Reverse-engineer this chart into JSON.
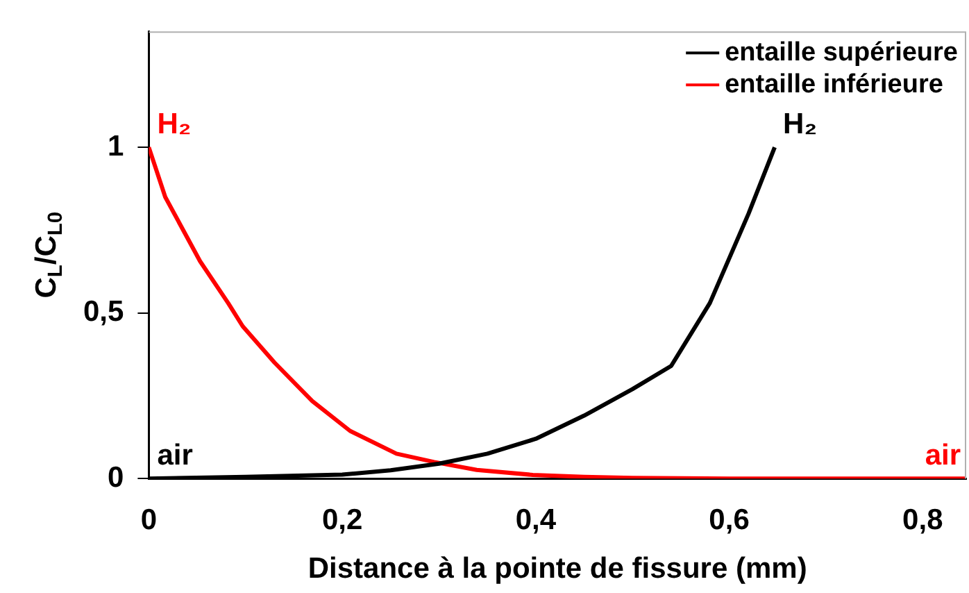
{
  "chart_data": {
    "type": "line",
    "xlabel": "Distance à la pointe de fissure (mm)",
    "ylabel": "C$_{L}$/C$_{L0}$",
    "series": [
      {
        "name": "entaille supérieure",
        "color": "#000000",
        "x": [
          0,
          0.1,
          0.2,
          0.25,
          0.3,
          0.35,
          0.4,
          0.45,
          0.5,
          0.54,
          0.58,
          0.62,
          0.647
        ],
        "values": [
          0,
          0.005,
          0.012,
          0.025,
          0.045,
          0.075,
          0.12,
          0.19,
          0.27,
          0.34,
          0.53,
          0.8,
          1.0
        ]
      },
      {
        "name": "entaille inférieure",
        "color": "#ff0000",
        "x": [
          0,
          0.017,
          0.053,
          0.082,
          0.097,
          0.13,
          0.169,
          0.208,
          0.256,
          0.295,
          0.339,
          0.397,
          0.45,
          0.5,
          0.6,
          0.845
        ],
        "values": [
          1.0,
          0.85,
          0.656,
          0.53,
          0.46,
          0.35,
          0.234,
          0.144,
          0.075,
          0.05,
          0.026,
          0.011,
          0.005,
          0.002,
          0,
          0
        ]
      }
    ],
    "annotations": [
      {
        "text": "H₂",
        "x": 0,
        "y": 1.0
      },
      {
        "text": "air",
        "x": 0,
        "y": 0
      },
      {
        "text": "H₂",
        "x": 0.647,
        "y": 1.0
      },
      {
        "text": "air",
        "x": 0.845,
        "y": 0
      }
    ],
    "xlim": [
      0,
      0.845
    ],
    "ylim": [
      0,
      1.35
    ],
    "xticks": [
      0,
      {
        "value": 0.2,
        "label": "0,2"
      },
      {
        "value": 0.4,
        "label": "0,4"
      },
      {
        "value": 0.6,
        "label": "0,6"
      },
      {
        "value": 0.8,
        "label": "0,8"
      }
    ],
    "yticks": [
      0,
      {
        "value": 0.5,
        "label": "0,5"
      },
      1
    ],
    "grid": false,
    "legend": "top right",
    "marker": "none",
    "line_style": "solid"
  }
}
